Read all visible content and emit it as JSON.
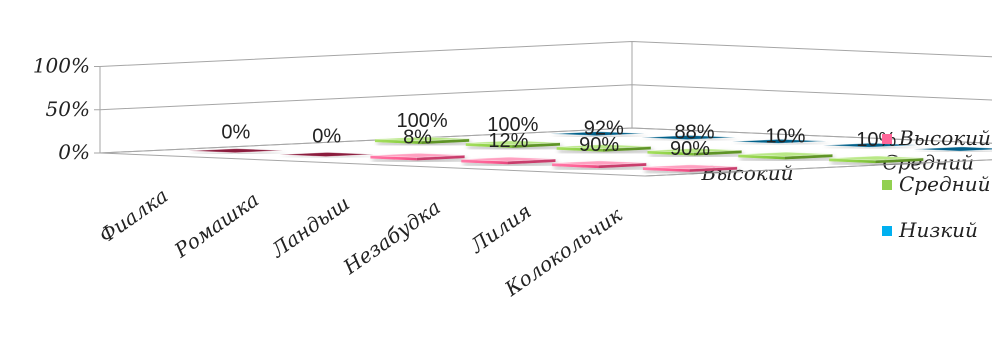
{
  "chart_data": {
    "type": "bar",
    "title": "",
    "categories": [
      "Фиалка",
      "Ромашка",
      "Ландыш",
      "Незабудка",
      "Лилия",
      "Колокольчик"
    ],
    "series": [
      {
        "name": "Высокий",
        "color": "#ff6699",
        "values": [
          0,
          0,
          8,
          12,
          90,
          90
        ],
        "labels": [
          "0%",
          "0%",
          "8%",
          "12%",
          "90%",
          "90%"
        ]
      },
      {
        "name": "Средний",
        "color": "#92d050",
        "values": [
          100,
          100,
          92,
          88,
          10,
          10
        ],
        "labels": [
          "100%",
          "100%",
          "92%",
          "88%",
          "10%",
          "10%"
        ]
      },
      {
        "name": "Низкий",
        "color": "#00b0f0",
        "values": [
          0,
          0,
          0,
          0,
          0,
          0
        ],
        "labels": []
      }
    ],
    "yticks": [
      "0%",
      "50%",
      "100%"
    ],
    "ylim": [
      0,
      100
    ],
    "depth_axis_labels": [
      "Высокий",
      "Средний",
      "Низкий"
    ],
    "legend_position": "right",
    "style": "3d-column"
  }
}
